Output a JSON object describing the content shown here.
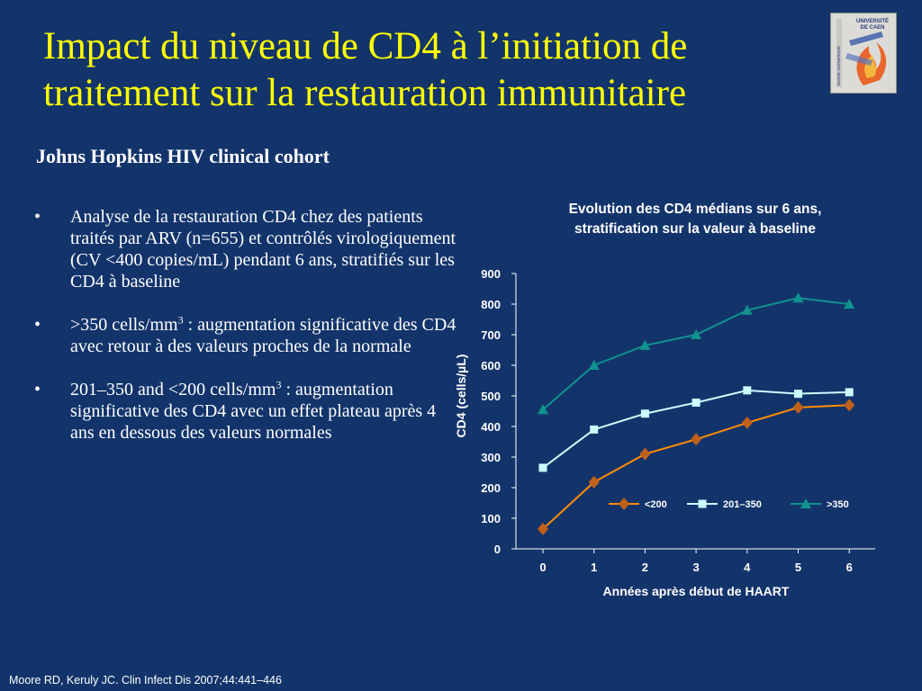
{
  "slide": {
    "title": "Impact du niveau de CD4 à l’initiation de traitement sur la restauration immunitaire",
    "subtitle": "Johns Hopkins HIV clinical cohort",
    "bullets": [
      {
        "marker": "•",
        "text": "Analyse de la restauration CD4 chez des patients traités par ARV (n=655) et contrôlés virologiquement (CV <400 copies/mL) pendant 6 ans, stratifiés sur les CD4 à baseline"
      },
      {
        "marker": "•",
        "pre": ">350 cells/mm",
        "sup": "3",
        "post": " : augmentation significative des CD4 avec retour à des valeurs proches de la normale"
      },
      {
        "marker": "•",
        "pre": "201–350 and <200 cells/mm",
        "sup": "3",
        "post": " : augmentation significative des CD4 avec un effet plateau après 4 ans en dessous des valeurs normales"
      }
    ],
    "footnote": "Moore RD, Keruly JC. Clin Infect Dis 2007;44:441–446",
    "logo": {
      "text_lines": [
        "UNIVERSITÉ",
        "DE CAEN"
      ],
      "side_text": "BASSE-NORMANDIE"
    }
  },
  "chart_data": {
    "type": "line",
    "title_lines": [
      "Evolution des CD4 médians sur 6 ans,",
      "stratification sur la valeur à baseline"
    ],
    "xlabel": "Années après début de HAART",
    "ylabel": "CD4  (cells/µL)",
    "x": [
      0,
      1,
      2,
      3,
      4,
      5,
      6
    ],
    "ylim": [
      0,
      900
    ],
    "yticks": [
      0,
      100,
      200,
      300,
      400,
      500,
      600,
      700,
      800,
      900
    ],
    "grid": false,
    "legend_position": "inside-bottom-right",
    "series": [
      {
        "name": "<200",
        "marker": "diamond",
        "color": "#ff8c00",
        "marker_color": "#c0601a",
        "values": [
          65,
          218,
          310,
          358,
          412,
          462,
          470
        ]
      },
      {
        "name": "201–350",
        "marker": "square",
        "color": "#ccffff",
        "marker_color": "#ccffff",
        "values": [
          265,
          390,
          442,
          478,
          518,
          507,
          512
        ]
      },
      {
        "name": ">350",
        "marker": "triangle",
        "color": "#10928f",
        "marker_color": "#10928f",
        "values": [
          455,
          600,
          665,
          700,
          780,
          820,
          800
        ]
      }
    ]
  }
}
